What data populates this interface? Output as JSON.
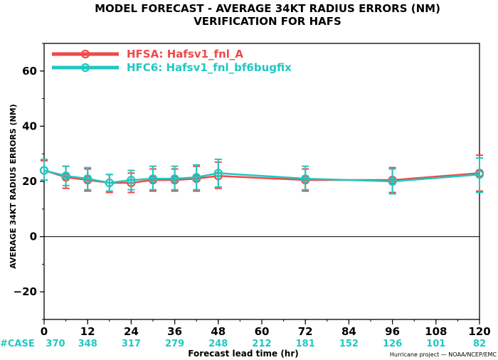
{
  "chart_data": {
    "type": "line",
    "title": "MODEL FORECAST - AVERAGE 34KT RADIUS ERRORS (NM)",
    "subtitle": "VERIFICATION FOR HAFS",
    "xlabel": "Forecast lead time (hr)",
    "ylabel": "AVERAGE 34KT RADIUS ERRORS (NM)",
    "xlim": [
      0,
      120
    ],
    "ylim": [
      -30,
      70
    ],
    "xticks": [
      "0",
      "12",
      "24",
      "36",
      "48",
      "60",
      "72",
      "84",
      "96",
      "108",
      "120"
    ],
    "yticks": [
      "60",
      "40",
      "20",
      "0",
      "−20"
    ],
    "zero_line": true,
    "grid": false,
    "legend_position": "top-left",
    "case_label": "#CASE",
    "cases": [
      "370",
      "348",
      "317",
      "279",
      "248",
      "212",
      "181",
      "152",
      "126",
      "101",
      "82"
    ],
    "credit": "Hurricane project — NOAA/NCEP/EMC",
    "series": [
      {
        "name": "HFSA: Hafsv1_fnl_A",
        "color": "#f04848",
        "x": [
          0,
          6,
          12,
          18,
          24,
          30,
          36,
          42,
          48,
          72,
          96,
          120
        ],
        "y": [
          24.0,
          21.5,
          20.5,
          19.5,
          19.5,
          20.5,
          20.5,
          21.0,
          22.0,
          20.5,
          20.5,
          23.0
        ],
        "err_low": [
          20.5,
          17.5,
          16.5,
          16.0,
          16.0,
          16.5,
          16.5,
          16.5,
          17.5,
          16.5,
          16.0,
          16.5
        ],
        "err_high": [
          27.5,
          25.5,
          24.5,
          22.5,
          23.0,
          24.5,
          24.5,
          25.5,
          27.0,
          24.5,
          25.0,
          29.5
        ]
      },
      {
        "name": "HFC6: Hafsv1_fnl_bf6bugfix",
        "color": "#20c8c0",
        "x": [
          0,
          6,
          12,
          18,
          24,
          30,
          36,
          42,
          48,
          72,
          96,
          120
        ],
        "y": [
          24.0,
          22.0,
          21.0,
          19.5,
          20.5,
          21.0,
          21.0,
          21.5,
          23.0,
          21.0,
          20.0,
          22.5
        ],
        "err_low": [
          20.5,
          18.5,
          17.0,
          16.5,
          17.0,
          17.0,
          17.0,
          17.0,
          18.0,
          17.0,
          15.5,
          16.0
        ],
        "err_high": [
          28.0,
          25.5,
          25.0,
          22.5,
          24.0,
          25.5,
          25.5,
          26.0,
          28.0,
          25.5,
          24.5,
          28.5
        ]
      }
    ]
  }
}
